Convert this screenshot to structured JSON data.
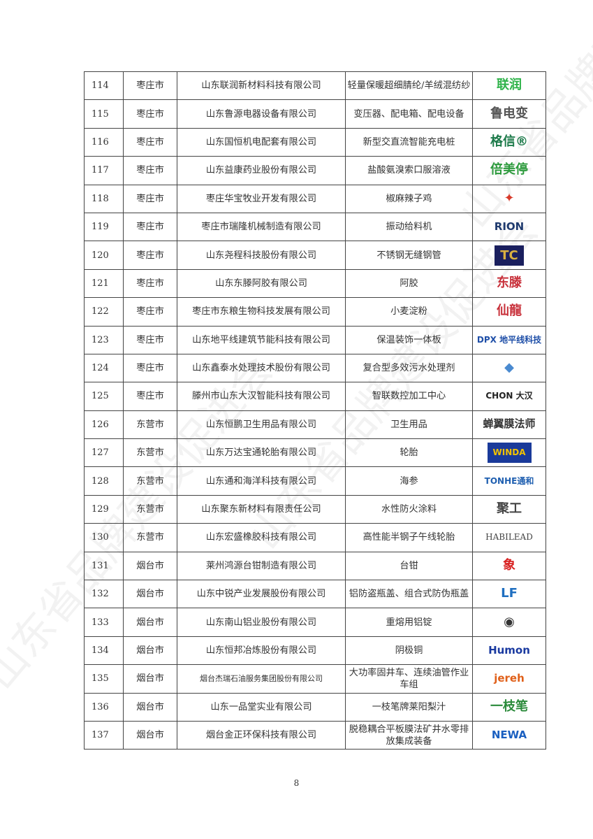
{
  "watermark": "山东省品牌建设促进会",
  "rows": [
    {
      "no": "114",
      "city": "枣庄市",
      "company": "山东联润新材料科技有限公司",
      "product": "轻量保暖超细腈纶/羊绒混纺纱",
      "logo": "联润",
      "logo_color": "#2fb34a"
    },
    {
      "no": "115",
      "city": "枣庄市",
      "company": "山东鲁源电器设备有限公司",
      "product": "变压器、配电箱、配电设备",
      "logo": "鲁电变",
      "logo_color": "#555555"
    },
    {
      "no": "116",
      "city": "枣庄市",
      "company": "山东国恒机电配套有限公司",
      "product": "新型交直流智能充电桩",
      "logo": "格信®",
      "logo_color": "#1d7a4a"
    },
    {
      "no": "117",
      "city": "枣庄市",
      "company": "山东益康药业股份有限公司",
      "product": "盐酸氨溴索口服溶液",
      "logo": "倍美停",
      "logo_color": "#2c9a3c"
    },
    {
      "no": "118",
      "city": "枣庄市",
      "company": "枣庄华宝牧业开发有限公司",
      "product": "椒麻辣子鸡",
      "logo": "✦",
      "logo_color": "#d83a2a"
    },
    {
      "no": "119",
      "city": "枣庄市",
      "company": "枣庄市瑞隆机械制造有限公司",
      "product": "振动给料机",
      "logo": "RION",
      "logo_color": "#1f3a6e"
    },
    {
      "no": "120",
      "city": "枣庄市",
      "company": "山东尧程科技股份有限公司",
      "product": "不锈钢无缝钢管",
      "logo": "TC",
      "logo_color": "#1a1f5e"
    },
    {
      "no": "121",
      "city": "枣庄市",
      "company": "山东东滕阿胶有限公司",
      "product": "阿胶",
      "logo": "东滕",
      "logo_color": "#c8303a"
    },
    {
      "no": "122",
      "city": "枣庄市",
      "company": "枣庄市东粮生物科技发展有限公司",
      "product": "小麦淀粉",
      "logo": "仙龍",
      "logo_color": "#c8303a"
    },
    {
      "no": "123",
      "city": "枣庄市",
      "company": "山东地平线建筑节能科技有限公司",
      "product": "保温装饰一体板",
      "logo": "DPX 地平线科技",
      "logo_color": "#1f4fa8"
    },
    {
      "no": "124",
      "city": "枣庄市",
      "company": "山东鑫泰水处理技术股份有限公司",
      "product": "复合型多效污水处理剂",
      "logo": "◆",
      "logo_color": "#4a8ad0"
    },
    {
      "no": "125",
      "city": "枣庄市",
      "company": "滕州市山东大汉智能科技有限公司",
      "product": "智联数控加工中心",
      "logo": "CHON 大汉",
      "logo_color": "#222222"
    },
    {
      "no": "126",
      "city": "东营市",
      "company": "山东恒鹏卫生用品有限公司",
      "product": "卫生用品",
      "logo": "蝉翼膜法师",
      "logo_color": "#333333"
    },
    {
      "no": "127",
      "city": "东营市",
      "company": "山东万达宝通轮胎有限公司",
      "product": "轮胎",
      "logo": "WINDA",
      "logo_color": "#f2c200"
    },
    {
      "no": "128",
      "city": "东营市",
      "company": "山东通和海洋科技有限公司",
      "product": "海参",
      "logo": "TONHE通和",
      "logo_color": "#1f5fb0"
    },
    {
      "no": "129",
      "city": "东营市",
      "company": "山东聚东新材料有限责任公司",
      "product": "水性防火涂料",
      "logo": "聚工",
      "logo_color": "#444444"
    },
    {
      "no": "130",
      "city": "东营市",
      "company": "山东宏盛橡胶科技有限公司",
      "product": "高性能半钢子午线轮胎",
      "logo": "HABILEAD",
      "logo_color": "#444444"
    },
    {
      "no": "131",
      "city": "烟台市",
      "company": "莱州鸿源台钳制造有限公司",
      "product": "台钳",
      "logo": "象",
      "logo_color": "#d82020"
    },
    {
      "no": "132",
      "city": "烟台市",
      "company": "山东中锐产业发展股份有限公司",
      "product": "铝防盗瓶盖、组合式防伪瓶盖",
      "logo": "LF",
      "logo_color": "#1f6fc0"
    },
    {
      "no": "133",
      "city": "烟台市",
      "company": "山东南山铝业股份有限公司",
      "product": "重熔用铝锭",
      "logo": "◉",
      "logo_color": "#333333"
    },
    {
      "no": "134",
      "city": "烟台市",
      "company": "山东恒邦冶炼股份有限公司",
      "product": "阴极铜",
      "logo": "Humon",
      "logo_color": "#1a3aa0"
    },
    {
      "no": "135",
      "city": "烟台市",
      "company": "烟台杰瑞石油服务集团股份有限公司",
      "product": "大功率固井车、连续油管作业车组",
      "logo": "jereh",
      "logo_color": "#e0601a"
    },
    {
      "no": "136",
      "city": "烟台市",
      "company": "山东一品堂实业有限公司",
      "product": "一枝笔牌莱阳梨汁",
      "logo": "一枝笔",
      "logo_color": "#2a8a3a"
    },
    {
      "no": "137",
      "city": "烟台市",
      "company": "烟台金正环保科技有限公司",
      "product": "脱稳耦合平板膜法矿井水零排放集成装备",
      "logo": "NEWA",
      "logo_color": "#1a5fc0"
    }
  ],
  "page_number": "8"
}
